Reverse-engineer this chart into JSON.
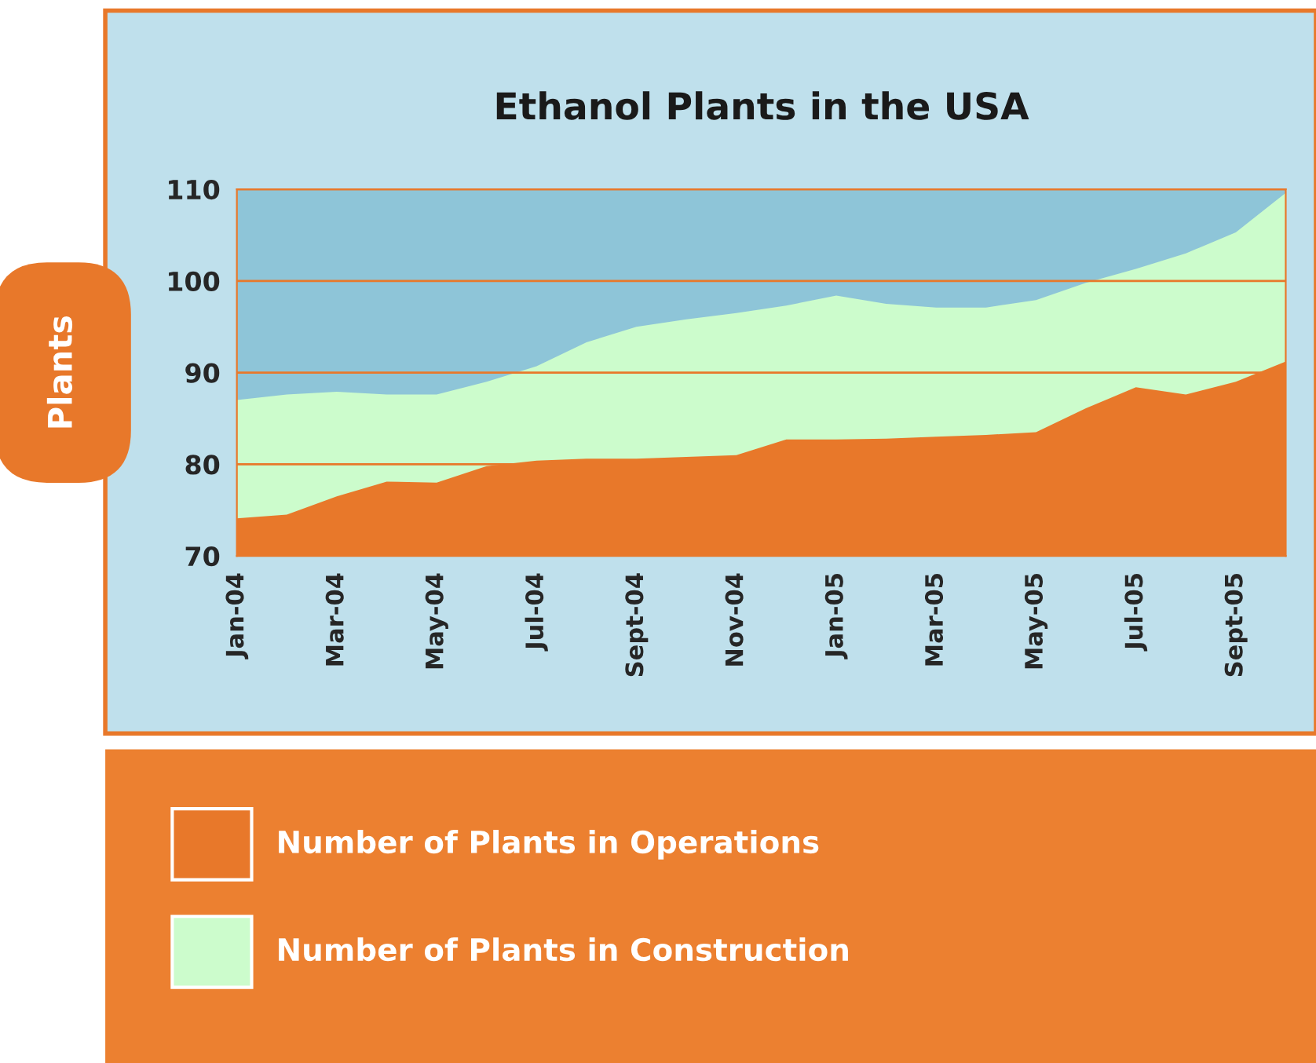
{
  "chart_data": {
    "type": "area",
    "title": "Ethanol Plants in the USA",
    "ylabel": "Plants",
    "categories": [
      "Jan-04",
      null,
      "Mar-04",
      null,
      "May-04",
      null,
      "Jul-04",
      null,
      "Sept-04",
      null,
      "Nov-04",
      null,
      "Jan-05",
      null,
      "Mar-05",
      null,
      "May-05",
      null,
      "Jul-05",
      null,
      "Sept-05",
      null
    ],
    "series": [
      {
        "name": "Number of Plants in Construction",
        "color": "#ccfccc",
        "values": [
          87.0,
          87.6,
          87.9,
          87.6,
          87.6,
          89.0,
          90.7,
          93.3,
          95.0,
          95.8,
          96.5,
          97.3,
          98.4,
          97.5,
          97.1,
          97.1,
          97.9,
          99.8,
          101.3,
          103.0,
          105.3,
          109.6
        ]
      },
      {
        "name": "Number of Plants in Operations",
        "color": "#e8782a",
        "values": [
          74.1,
          74.5,
          76.5,
          78.1,
          78.0,
          79.8,
          80.4,
          80.6,
          80.6,
          80.8,
          81.0,
          82.7,
          82.7,
          82.8,
          83.0,
          83.2,
          83.5,
          86.1,
          88.4,
          87.6,
          89.0,
          91.2
        ]
      }
    ],
    "ylim": [
      70,
      110
    ],
    "yticks": [
      70,
      80,
      90,
      100,
      110
    ],
    "grid": "y",
    "legend": "bottom"
  }
}
